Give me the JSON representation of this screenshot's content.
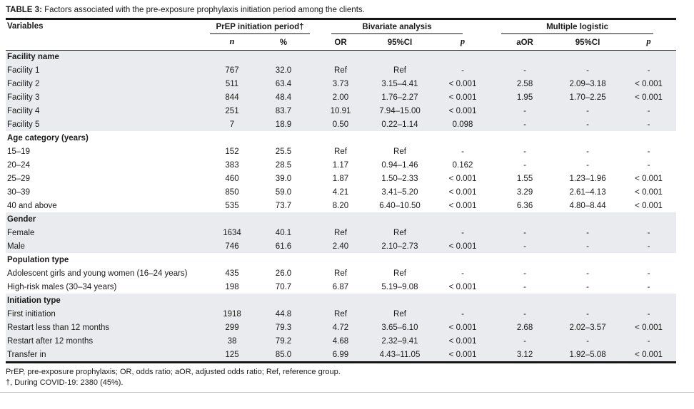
{
  "title": {
    "label": "TABLE 3:",
    "text": " Factors associated with the pre-exposure prophylaxis initiation period among the clients."
  },
  "header": {
    "variables": "Variables",
    "groups": [
      {
        "label": "PrEP initiation period†",
        "cols": [
          "n",
          "%"
        ]
      },
      {
        "label": "Bivariate analysis",
        "cols": [
          "OR",
          "95%CI",
          "p"
        ]
      },
      {
        "label": "Multiple logistic",
        "cols": [
          "aOR",
          "95%CI",
          "p"
        ]
      }
    ]
  },
  "sections": [
    {
      "name": "Facility name",
      "shaded": true,
      "rows": [
        {
          "label": "Facility 1",
          "n": "767",
          "pct": "32.0",
          "or": "Ref",
          "ci": "Ref",
          "p": "-",
          "aor": "-",
          "aci": "-",
          "ap": "-"
        },
        {
          "label": "Facility 2",
          "n": "511",
          "pct": "63.4",
          "or": "3.73",
          "ci": "3.15–4.41",
          "p": "< 0.001",
          "aor": "2.58",
          "aci": "2.09–3.18",
          "ap": "< 0.001"
        },
        {
          "label": "Facility 3",
          "n": "844",
          "pct": "48.4",
          "or": "2.00",
          "ci": "1.76–2.27",
          "p": "< 0.001",
          "aor": "1.95",
          "aci": "1.70–2.25",
          "ap": "< 0.001"
        },
        {
          "label": "Facility 4",
          "n": "251",
          "pct": "83.7",
          "or": "10.91",
          "ci": "7.94–15.00",
          "p": "< 0.001",
          "aor": "-",
          "aci": "-",
          "ap": "-"
        },
        {
          "label": "Facility 5",
          "n": "7",
          "pct": "18.9",
          "or": "0.50",
          "ci": "0.22–1.14",
          "p": "0.098",
          "aor": "-",
          "aci": "-",
          "ap": "-"
        }
      ]
    },
    {
      "name": "Age category (years)",
      "shaded": false,
      "rows": [
        {
          "label": "15–19",
          "n": "152",
          "pct": "25.5",
          "or": "Ref",
          "ci": "Ref",
          "p": "-",
          "aor": "-",
          "aci": "-",
          "ap": "-"
        },
        {
          "label": "20–24",
          "n": "383",
          "pct": "28.5",
          "or": "1.17",
          "ci": "0.94–1.46",
          "p": "0.162",
          "aor": "-",
          "aci": "-",
          "ap": "-"
        },
        {
          "label": "25–29",
          "n": "460",
          "pct": "39.0",
          "or": "1.87",
          "ci": "1.50–2.33",
          "p": "< 0.001",
          "aor": "1.55",
          "aci": "1.23–1.96",
          "ap": "< 0.001"
        },
        {
          "label": "30–39",
          "n": "850",
          "pct": "59.0",
          "or": "4.21",
          "ci": "3.41–5.20",
          "p": "< 0.001",
          "aor": "3.29",
          "aci": "2.61–4.13",
          "ap": "< 0.001"
        },
        {
          "label": "40 and above",
          "n": "535",
          "pct": "73.7",
          "or": "8.20",
          "ci": "6.40–10.50",
          "p": "< 0.001",
          "aor": "6.36",
          "aci": "4.80–8.44",
          "ap": "< 0.001"
        }
      ]
    },
    {
      "name": "Gender",
      "shaded": true,
      "rows": [
        {
          "label": "Female",
          "n": "1634",
          "pct": "40.1",
          "or": "Ref",
          "ci": "Ref",
          "p": "-",
          "aor": "-",
          "aci": "-",
          "ap": "-"
        },
        {
          "label": "Male",
          "n": "746",
          "pct": "61.6",
          "or": "2.40",
          "ci": "2.10–2.73",
          "p": "< 0.001",
          "aor": "-",
          "aci": "-",
          "ap": "-"
        }
      ]
    },
    {
      "name": "Population type",
      "shaded": false,
      "rows": [
        {
          "label": "Adolescent girls and young women (16–24 years)",
          "n": "435",
          "pct": "26.0",
          "or": "Ref",
          "ci": "Ref",
          "p": "-",
          "aor": "-",
          "aci": "-",
          "ap": "-"
        },
        {
          "label": "High-risk males (30–34 years)",
          "n": "198",
          "pct": "70.7",
          "or": "6.87",
          "ci": "5.19–9.08",
          "p": "< 0.001",
          "aor": "-",
          "aci": "-",
          "ap": "-"
        }
      ]
    },
    {
      "name": "Initiation type",
      "shaded": true,
      "rows": [
        {
          "label": "First initiation",
          "n": "1918",
          "pct": "44.8",
          "or": "Ref",
          "ci": "Ref",
          "p": "-",
          "aor": "-",
          "aci": "-",
          "ap": "-"
        },
        {
          "label": "Restart less than 12 months",
          "n": "299",
          "pct": "79.3",
          "or": "4.72",
          "ci": "3.65–6.10",
          "p": "< 0.001",
          "aor": "2.68",
          "aci": "2.02–3.57",
          "ap": "< 0.001"
        },
        {
          "label": "Restart after 12 months",
          "n": "38",
          "pct": "79.2",
          "or": "4.68",
          "ci": "2.32–9.41",
          "p": "< 0.001",
          "aor": "-",
          "aci": "-",
          "ap": "-"
        },
        {
          "label": "Transfer in",
          "n": "125",
          "pct": "85.0",
          "or": "6.99",
          "ci": "4.43–11.05",
          "p": "< 0.001",
          "aor": "3.12",
          "aci": "1.92–5.08",
          "ap": "< 0.001"
        }
      ]
    }
  ],
  "footnotes": [
    "PrEP, pre-exposure prophylaxis; OR, odds ratio; aOR, adjusted odds ratio; Ref, reference group.",
    "†, During COVID-19: 2380 (45%)."
  ],
  "colors": {
    "shaded_row": "#eaebee",
    "rule": "#161616",
    "text": "#1a1a1a",
    "thin_rule": "#b7b7bc"
  }
}
